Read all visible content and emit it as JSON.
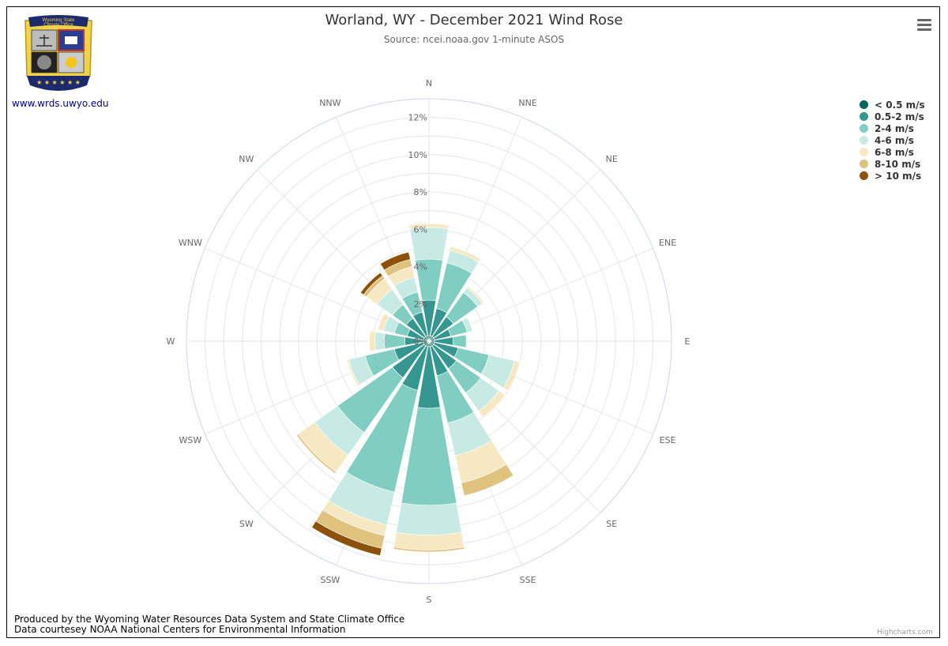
{
  "title": "Worland, WY - December 2021 Wind Rose",
  "subtitle": "Source: ncei.noaa.gov 1-minute ASOS",
  "logo": {
    "text_line1": "Wyoming State",
    "text_line2": "Climate Office",
    "link": "www.wrds.uwyo.edu"
  },
  "credits": {
    "line1": "Produced by the Wyoming Water Resources Data System and State Climate Office",
    "line2": "Data courtesey NOAA National Centers for Environmental Information",
    "highcharts": "Highcharts.com"
  },
  "menu_icon": "hamburger-menu-icon",
  "chart_data": {
    "type": "polar-stacked-bar",
    "directions": [
      "N",
      "NNE",
      "NE",
      "ENE",
      "E",
      "ESE",
      "SE",
      "SSE",
      "S",
      "SSW",
      "SW",
      "WSW",
      "W",
      "WNW",
      "NW",
      "NNW"
    ],
    "radial_ticks": [
      "0%",
      "2%",
      "4%",
      "6%",
      "8%",
      "10%",
      "12%"
    ],
    "radial_max": 13,
    "legend_position": "top-right",
    "series": [
      {
        "name": "< 0.5 m/s",
        "color": "#01665e",
        "values": [
          0.3,
          0.3,
          0.3,
          0.3,
          0.3,
          0.3,
          0.3,
          0.3,
          0.3,
          0.3,
          0.3,
          0.3,
          0.3,
          0.3,
          0.3,
          0.3
        ]
      },
      {
        "name": "0.5-2 m/s",
        "color": "#35978f",
        "values": [
          1.9,
          1.5,
          1.3,
          0.9,
          1.0,
          1.3,
          1.5,
          1.6,
          3.3,
          2.4,
          2.1,
          1.6,
          1.0,
          0.9,
          1.2,
          1.3
        ]
      },
      {
        "name": "2-4 m/s",
        "color": "#80cdc1",
        "values": [
          2.2,
          2.5,
          1.6,
          0.9,
          0.7,
          1.7,
          1.6,
          2.6,
          5.2,
          5.6,
          3.6,
          1.6,
          1.1,
          0.7,
          0.9,
          1.1
        ]
      },
      {
        "name": "4-6 m/s",
        "color": "#c7eae5",
        "values": [
          1.7,
          0.7,
          0.3,
          0.3,
          0.0,
          1.4,
          1.2,
          1.8,
          1.6,
          1.8,
          1.5,
          0.9,
          0.5,
          0.6,
          1.0,
          0.8
        ]
      },
      {
        "name": "6-8 m/s",
        "color": "#f6e8c3",
        "values": [
          0.2,
          0.2,
          0.1,
          0.0,
          0.0,
          0.3,
          0.4,
          1.5,
          0.8,
          0.6,
          1.1,
          0.1,
          0.3,
          0.3,
          0.7,
          0.6
        ]
      },
      {
        "name": "8-10 m/s",
        "color": "#dfc27d",
        "values": [
          0.0,
          0.0,
          0.0,
          0.0,
          0.0,
          0.0,
          0.0,
          0.7,
          0.1,
          0.7,
          0.1,
          0.0,
          0.0,
          0.0,
          0.2,
          0.4
        ]
      },
      {
        "name": "> 10 m/s",
        "color": "#8c510a",
        "values": [
          0.0,
          0.0,
          0.0,
          0.0,
          0.0,
          0.0,
          0.0,
          0.0,
          0.0,
          0.4,
          0.0,
          0.0,
          0.0,
          0.0,
          0.2,
          0.4
        ]
      }
    ]
  }
}
